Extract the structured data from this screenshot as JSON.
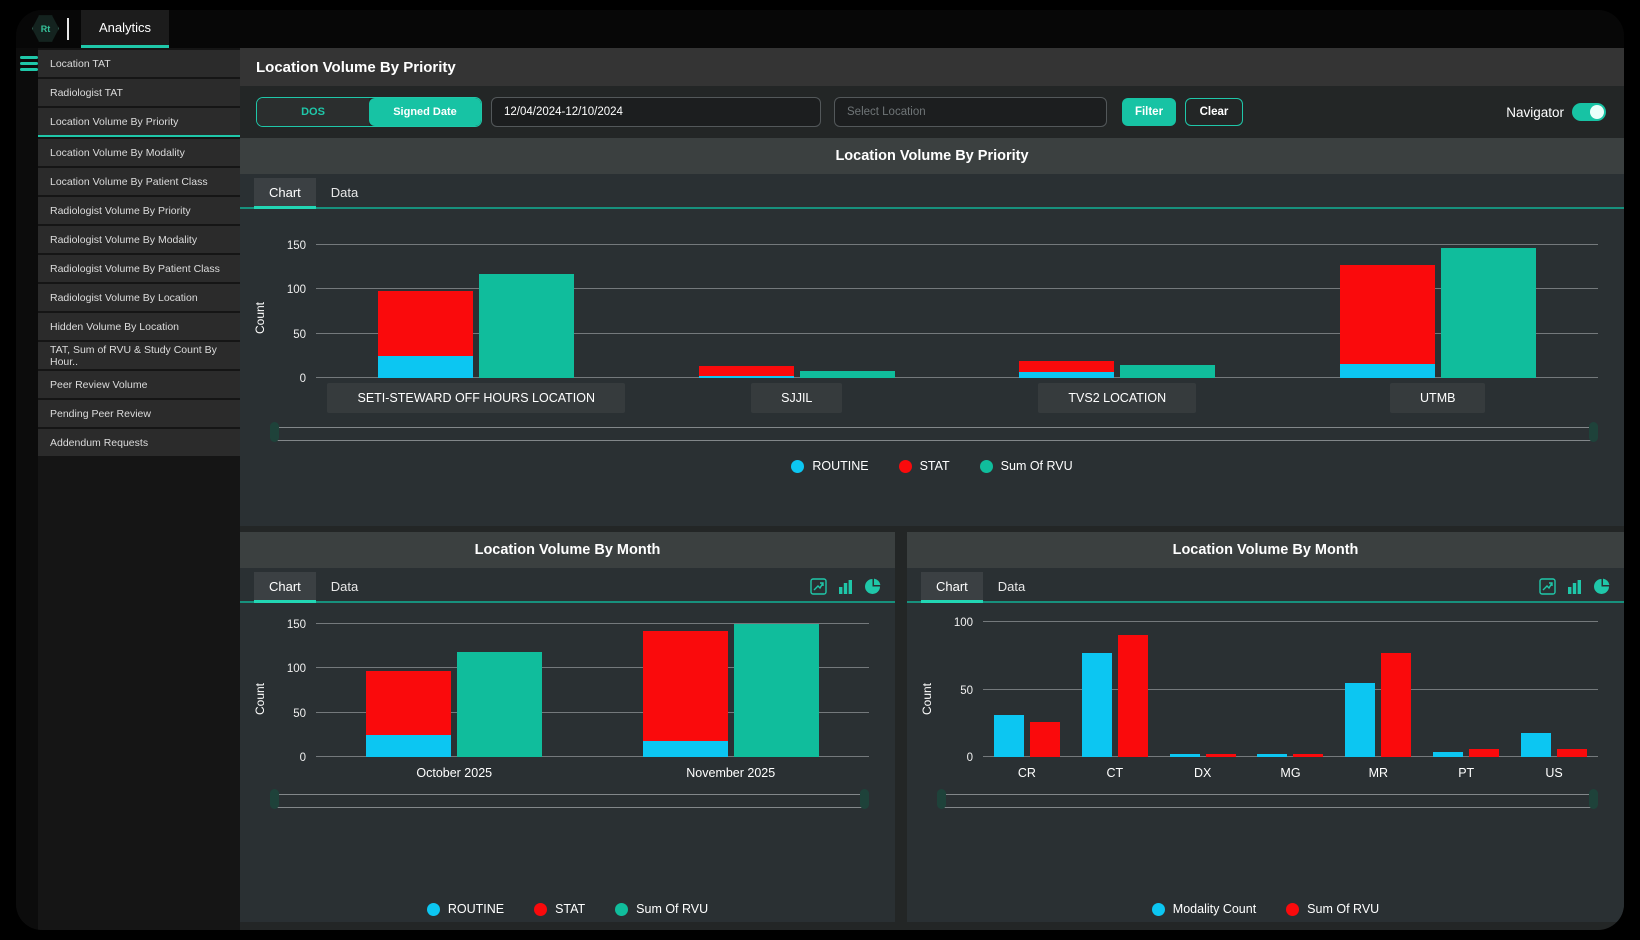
{
  "topbar": {
    "logo_text": "Rt",
    "tab_label": "Analytics"
  },
  "sidebar": {
    "items": [
      "Location TAT",
      "Radiologist TAT",
      "Location Volume By Priority",
      "Location Volume By Modality",
      "Location Volume By Patient Class",
      "Radiologist Volume By Priority",
      "Radiologist Volume By Modality",
      "Radiologist Volume By Patient Class",
      "Radiologist Volume By Location",
      "Hidden Volume By Location",
      "TAT, Sum of RVU & Study Count By Hour..",
      "Peer Review Volume",
      "Pending Peer Review",
      "Addendum Requests"
    ],
    "active_item": "Location Volume By Priority"
  },
  "header": {
    "title": "Location Volume By Priority"
  },
  "filters": {
    "toggle": {
      "options": [
        "DOS",
        "Signed Date"
      ],
      "selected": "Signed Date"
    },
    "date_range": "12/04/2024-12/10/2024",
    "location_placeholder": "Select Location",
    "filter_label": "Filter",
    "clear_label": "Clear",
    "navigator_label": "Navigator",
    "navigator_on": true
  },
  "tabs": {
    "chart": "Chart",
    "data": "Data"
  },
  "colors": {
    "accent": "#1fc7a9",
    "routine_cyan": "#0cc6f2",
    "stat_red": "#fa0a0c",
    "rvu_teal": "#10bd9c"
  },
  "chart_data": [
    {
      "type": "bar",
      "title": "Location Volume By Priority",
      "ylabel": "Count",
      "yticks": [
        0,
        50,
        100,
        150
      ],
      "ylim": [
        0,
        175
      ],
      "grid": true,
      "legend_position": "bottom",
      "categories": [
        "SETI-STEWARD OFF HOURS LOCATION",
        "SJJIL",
        "TVS2 LOCATION",
        "UTMB"
      ],
      "series": [
        {
          "name": "ROUTINE",
          "color": "#0cc6f2",
          "stack": "count",
          "values": [
            25,
            2,
            7,
            16
          ]
        },
        {
          "name": "STAT",
          "color": "#fa0a0c",
          "stack": "count",
          "values": [
            73,
            12,
            12,
            112
          ]
        },
        {
          "name": "Sum Of RVU",
          "color": "#10bd9c",
          "stack": "rvu",
          "values": [
            118,
            8,
            15,
            147
          ]
        }
      ]
    },
    {
      "type": "bar",
      "title": "Location Volume By Month",
      "ylabel": "Count",
      "yticks": [
        0,
        50,
        100,
        150
      ],
      "ylim": [
        0,
        158
      ],
      "grid": true,
      "legend_position": "bottom",
      "categories": [
        "October 2025",
        "November 2025"
      ],
      "series": [
        {
          "name": "ROUTINE",
          "color": "#0cc6f2",
          "stack": "count",
          "values": [
            25,
            18
          ]
        },
        {
          "name": "STAT",
          "color": "#fa0a0c",
          "stack": "count",
          "values": [
            72,
            124
          ]
        },
        {
          "name": "Sum Of RVU",
          "color": "#10bd9c",
          "stack": "rvu",
          "values": [
            118,
            150
          ]
        }
      ]
    },
    {
      "type": "bar",
      "title": "Location Volume By Month",
      "ylabel": "Count",
      "yticks": [
        0,
        50,
        100
      ],
      "ylim": [
        0,
        104
      ],
      "grid": true,
      "legend_position": "bottom",
      "categories": [
        "CR",
        "CT",
        "DX",
        "MG",
        "MR",
        "PT",
        "US"
      ],
      "series": [
        {
          "name": "Modality Count",
          "color": "#0cc6f2",
          "stack": "a",
          "values": [
            31,
            77,
            2,
            2,
            55,
            4,
            18
          ]
        },
        {
          "name": "Sum Of RVU",
          "color": "#fa0a0c",
          "stack": "b",
          "values": [
            26,
            91,
            2,
            2,
            77,
            6,
            6
          ]
        }
      ]
    }
  ]
}
